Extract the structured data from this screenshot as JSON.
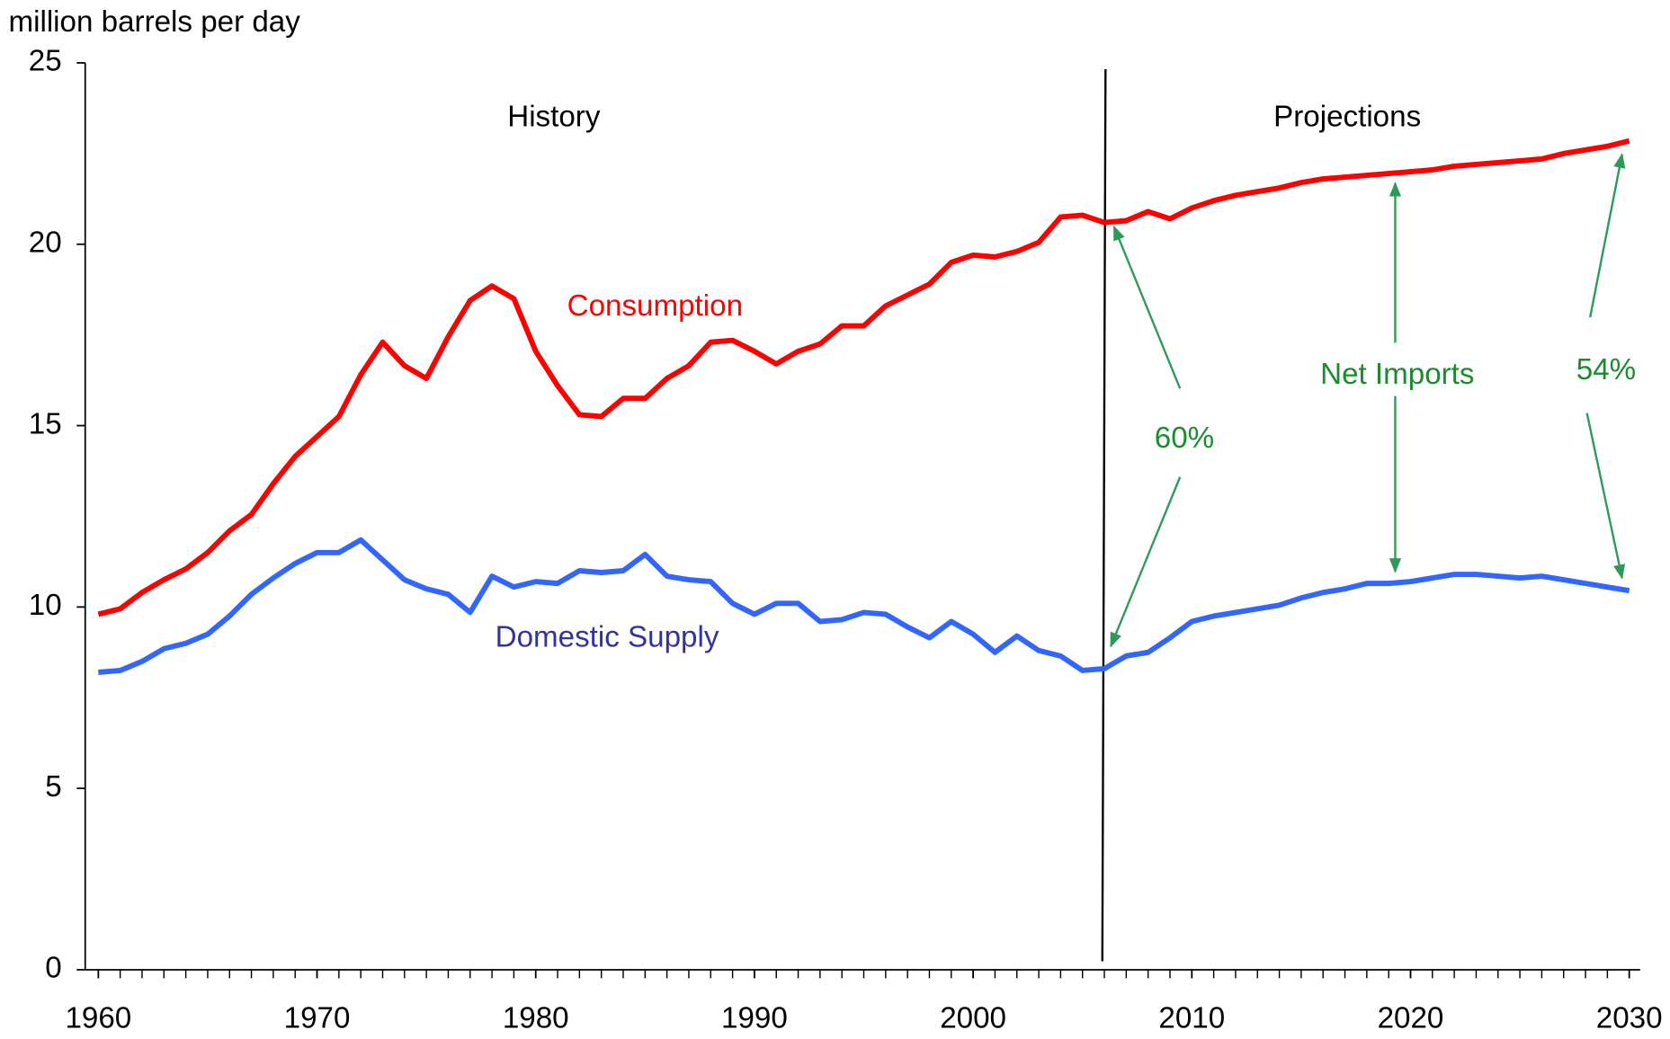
{
  "chart_data": {
    "type": "line",
    "y_label": "million barrels per day",
    "annotations": {
      "history": "History",
      "projections": "Projections",
      "net_imports": "Net Imports",
      "share_2006": "60%",
      "share_2030": "54%"
    },
    "x": [
      1960,
      1961,
      1962,
      1963,
      1964,
      1965,
      1966,
      1967,
      1968,
      1969,
      1970,
      1971,
      1972,
      1973,
      1974,
      1975,
      1976,
      1977,
      1978,
      1979,
      1980,
      1981,
      1982,
      1983,
      1984,
      1985,
      1986,
      1987,
      1988,
      1989,
      1990,
      1991,
      1992,
      1993,
      1994,
      1995,
      1996,
      1997,
      1998,
      1999,
      2000,
      2001,
      2002,
      2003,
      2004,
      2005,
      2006,
      2007,
      2008,
      2009,
      2010,
      2011,
      2012,
      2013,
      2014,
      2015,
      2016,
      2017,
      2018,
      2019,
      2020,
      2021,
      2022,
      2023,
      2024,
      2025,
      2026,
      2027,
      2028,
      2029,
      2030
    ],
    "series": [
      {
        "name": "Consumption",
        "color": "#ff0000",
        "label_color": "#ff0000",
        "values": [
          9.8,
          9.95,
          10.4,
          10.75,
          11.05,
          11.5,
          12.1,
          12.55,
          13.4,
          14.15,
          14.7,
          15.25,
          16.4,
          17.3,
          16.65,
          16.3,
          17.45,
          18.45,
          18.85,
          18.5,
          17.05,
          16.1,
          15.3,
          15.25,
          15.75,
          15.75,
          16.3,
          16.65,
          17.3,
          17.35,
          17.05,
          16.7,
          17.05,
          17.25,
          17.75,
          17.75,
          18.3,
          18.6,
          18.9,
          19.5,
          19.7,
          19.65,
          19.8,
          20.05,
          20.75,
          20.8,
          20.6,
          20.65,
          20.9,
          20.7,
          21.0,
          21.2,
          21.35,
          21.45,
          21.55,
          21.7,
          21.8,
          21.85,
          21.9,
          21.95,
          22.0,
          22.05,
          22.15,
          22.2,
          22.25,
          22.3,
          22.35,
          22.5,
          22.6,
          22.7,
          22.85
        ]
      },
      {
        "name": "Domestic Supply",
        "color": "#3366ff",
        "label_color": "#333399",
        "values": [
          8.2,
          8.25,
          8.5,
          8.85,
          9.0,
          9.25,
          9.75,
          10.35,
          10.8,
          11.2,
          11.5,
          11.5,
          11.85,
          11.3,
          10.75,
          10.5,
          10.35,
          9.85,
          10.85,
          10.55,
          10.7,
          10.65,
          11.0,
          10.95,
          11.0,
          11.45,
          10.85,
          10.75,
          10.7,
          10.1,
          9.8,
          10.1,
          10.1,
          9.6,
          9.65,
          9.85,
          9.8,
          9.45,
          9.15,
          9.6,
          9.25,
          8.75,
          9.2,
          8.8,
          8.65,
          8.25,
          8.3,
          8.65,
          8.75,
          9.15,
          9.6,
          9.75,
          9.85,
          9.95,
          10.05,
          10.25,
          10.4,
          10.5,
          10.65,
          10.65,
          10.7,
          10.8,
          10.9,
          10.9,
          10.85,
          10.8,
          10.85,
          10.75,
          10.65,
          10.55,
          10.45
        ]
      }
    ],
    "xlim": [
      1959.4,
      2030.5
    ],
    "xticks": [
      1960,
      1970,
      1980,
      1990,
      2000,
      2010,
      2020,
      2030
    ],
    "ylim": [
      0,
      25
    ],
    "yticks": [
      0,
      5,
      10,
      15,
      20,
      25
    ],
    "annotation_color": "#1a8c2e",
    "grid": false
  }
}
